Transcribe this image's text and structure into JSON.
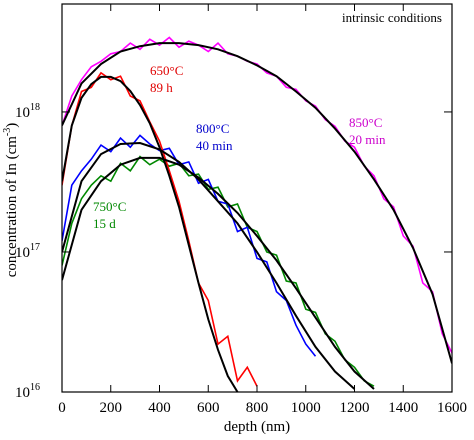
{
  "chart_data": {
    "type": "line",
    "log_y": true,
    "xlabel": "depth (nm)",
    "ylabel": "concentration of In (cm",
    "ylabel_sup": "-3",
    "ylabel_end": ")",
    "xlim": [
      0,
      1600
    ],
    "ylim": [
      1e+16,
      5.9e+18
    ],
    "xticks": [
      0,
      200,
      400,
      600,
      800,
      1000,
      1200,
      1400,
      1600
    ],
    "yticks": [
      {
        "value": 1e+16,
        "label": "10",
        "exponent": "16"
      },
      {
        "value": 1e+17,
        "label": "10",
        "exponent": "17"
      },
      {
        "value": 1e+18,
        "label": "10",
        "exponent": "18"
      }
    ],
    "annotations": [
      {
        "text": "intrinsic conditions",
        "color": "#000000"
      },
      {
        "text": "650°C",
        "color": "#e00000"
      },
      {
        "text": "89 h",
        "color": "#e00000"
      },
      {
        "text": "800°C",
        "color": "#0000cc"
      },
      {
        "text": "40 min",
        "color": "#0000cc"
      },
      {
        "text": "850°C",
        "color": "#cc00cc"
      },
      {
        "text": "20 min",
        "color": "#cc00cc"
      },
      {
        "text": "750°C",
        "color": "#008800"
      },
      {
        "text": "15 d",
        "color": "#008800"
      }
    ],
    "series": [
      {
        "color": "#008800",
        "x": [
          0,
          40,
          80,
          120,
          160,
          200,
          240,
          280,
          320,
          360,
          400,
          440,
          480,
          520,
          560,
          600,
          640,
          680,
          720,
          760,
          800,
          840,
          880,
          920,
          960,
          1000,
          1040,
          1080,
          1120,
          1160,
          1200,
          1240,
          1280
        ],
        "values": [
          8e+16,
          1.6e+17,
          2.4e+17,
          3e+17,
          3.5e+17,
          3.2e+17,
          4.3e+17,
          3.8e+17,
          4.8e+17,
          4.2e+17,
          4.6e+17,
          4.1e+17,
          4.3e+17,
          3.5e+17,
          3.6e+17,
          2.8e+17,
          2.9e+17,
          2.1e+17,
          2.2e+17,
          1.5e+17,
          1.4e+17,
          1e+17,
          9.5e+16,
          6.2e+16,
          6e+16,
          3.9e+16,
          3.7e+16,
          2.6e+16,
          2.3e+16,
          1.7e+16,
          1.5e+16,
          1.2e+16,
          1.1e+16
        ]
      },
      {
        "color": "#0000ff",
        "x": [
          0,
          40,
          80,
          120,
          160,
          200,
          240,
          280,
          320,
          360,
          400,
          440,
          480,
          520,
          560,
          600,
          640,
          680,
          720,
          760,
          800,
          840,
          880,
          920,
          960,
          1000,
          1040
        ],
        "values": [
          1.2e+17,
          3e+17,
          3.8e+17,
          4.6e+17,
          5.8e+17,
          5.2e+17,
          6.5e+17,
          5.6e+17,
          6.8e+17,
          5.9e+17,
          5.3e+17,
          5.5e+17,
          4.2e+17,
          4.4e+17,
          3.1e+17,
          3.3e+17,
          2.3e+17,
          2.2e+17,
          1.4e+17,
          1.5e+17,
          9e+16,
          8.5e+16,
          5.2e+16,
          4.5e+16,
          3e+16,
          2.2e+16,
          1.8e+16
        ]
      },
      {
        "color": "#ff00ff",
        "x": [
          0,
          40,
          80,
          120,
          160,
          200,
          240,
          280,
          320,
          360,
          400,
          440,
          480,
          520,
          560,
          600,
          640,
          680,
          720,
          760,
          800,
          840,
          880,
          920,
          960,
          1000,
          1040,
          1080,
          1120,
          1160,
          1200,
          1240,
          1280,
          1320,
          1360,
          1400,
          1440,
          1480,
          1520,
          1560,
          1600
        ],
        "values": [
          8e+17,
          1.3e+18,
          1.7e+18,
          2.1e+18,
          2.3e+18,
          2.6e+18,
          2.7e+18,
          3.1e+18,
          2.8e+18,
          3.3e+18,
          3e+18,
          3.4e+18,
          2.9e+18,
          3.2e+18,
          3e+18,
          2.7e+18,
          3.1e+18,
          2.6e+18,
          2.5e+18,
          2.3e+18,
          2.2e+18,
          1.9e+18,
          1.8e+18,
          1.5e+18,
          1.45e+18,
          1.2e+18,
          1.1e+18,
          8.8e+17,
          7.9e+17,
          6.2e+17,
          5.6e+17,
          4.1e+17,
          3.5e+17,
          2.4e+17,
          2.1e+17,
          1.3e+17,
          1.1e+17,
          6e+16,
          5.2e+16,
          2.6e+16,
          1.9e+16
        ]
      },
      {
        "color": "#ff0000",
        "x": [
          0,
          40,
          80,
          120,
          160,
          200,
          240,
          280,
          320,
          360,
          400,
          440,
          480,
          520,
          560,
          600,
          640,
          680,
          720,
          760,
          800
        ],
        "values": [
          3e+17,
          8e+17,
          1.4e+18,
          1.5e+18,
          1.9e+18,
          1.7e+18,
          1.8e+18,
          1.3e+18,
          1.2e+18,
          8.5e+17,
          6.2e+17,
          3.8e+17,
          2.3e+17,
          1.2e+17,
          6e+16,
          4.5e+16,
          2.2e+16,
          2.5e+16,
          1.2e+16,
          1.5e+16,
          1.1e+16
        ]
      },
      {
        "color": "#000000",
        "x": [
          0,
          80,
          160,
          240,
          320,
          400,
          480,
          560,
          640,
          720,
          800,
          880,
          960,
          1040,
          1120,
          1200,
          1280,
          1360,
          1440,
          1520,
          1600
        ],
        "values": [
          8e+17,
          1.6e+18,
          2.2e+18,
          2.7e+18,
          2.95e+18,
          3.1e+18,
          3.1e+18,
          3e+18,
          2.8e+18,
          2.5e+18,
          2.15e+18,
          1.8e+18,
          1.4e+18,
          1.07e+18,
          7.6e+17,
          5.2e+17,
          3.3e+17,
          2e+17,
          1.07e+17,
          5e+16,
          1.6e+16
        ]
      },
      {
        "color": "#000000",
        "x": [
          0,
          40,
          80,
          120,
          160,
          200,
          240,
          280,
          320,
          360,
          400,
          440,
          480,
          520,
          560,
          600,
          640,
          680,
          720
        ],
        "values": [
          3.2e+17,
          8e+17,
          1.26e+18,
          1.58e+18,
          1.78e+18,
          1.78e+18,
          1.66e+18,
          1.41e+18,
          1.12e+18,
          8.3e+17,
          5.6e+17,
          3.5e+17,
          2.1e+17,
          1.12e+17,
          6e+16,
          3.3e+16,
          2e+16,
          1.3e+16,
          1e+16
        ]
      },
      {
        "color": "#000000",
        "x": [
          0,
          80,
          160,
          240,
          320,
          400,
          480,
          560,
          640,
          720,
          800,
          880,
          960,
          1040,
          1120,
          1200
        ],
        "values": [
          1e+17,
          3.2e+17,
          5e+17,
          5.9e+17,
          6e+17,
          5.4e+17,
          4.4e+17,
          3.3e+17,
          2.3e+17,
          1.6e+17,
          1e+17,
          6e+16,
          3.5e+16,
          2.1e+16,
          1.4e+16,
          1.05e+16
        ]
      },
      {
        "color": "#000000",
        "x": [
          0,
          80,
          160,
          240,
          320,
          400,
          480,
          560,
          640,
          720,
          800,
          880,
          960,
          1040,
          1120,
          1200,
          1280
        ],
        "values": [
          6.3e+16,
          2e+17,
          3.2e+17,
          4.2e+17,
          4.7e+17,
          4.7e+17,
          4.2e+17,
          3.4e+17,
          2.6e+17,
          1.9e+17,
          1.3e+17,
          8.7e+16,
          5.5e+16,
          3.4e+16,
          2.1e+16,
          1.4e+16,
          1.05e+16
        ]
      }
    ]
  }
}
